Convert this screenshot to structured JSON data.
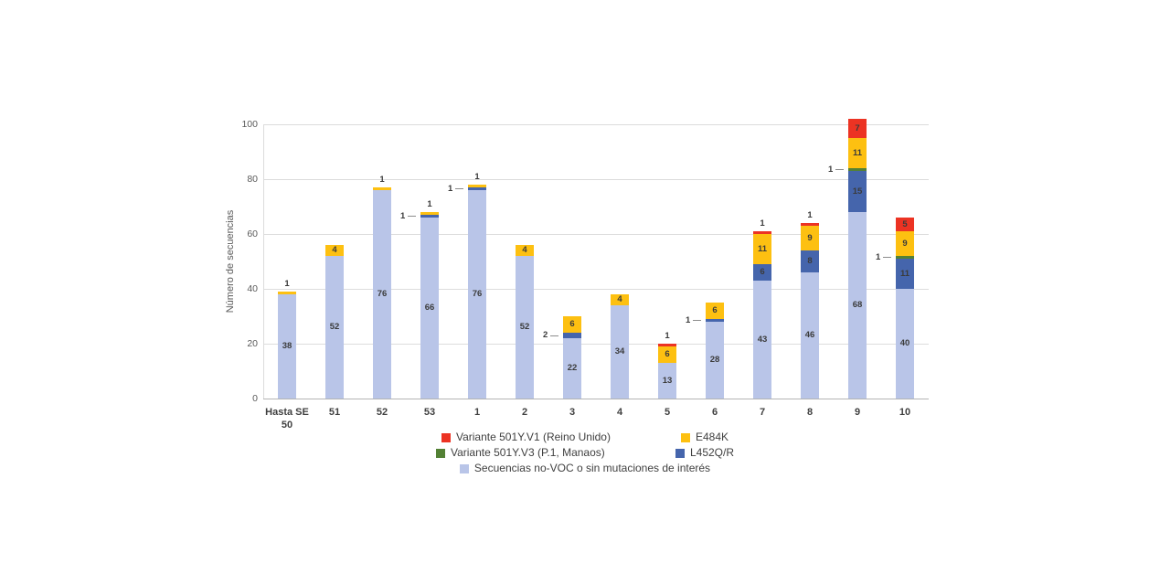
{
  "chart_data": {
    "type": "bar",
    "stacked": true,
    "title": "",
    "ylabel": "Número de secuencias",
    "xlabel": "",
    "ylim": [
      0,
      100
    ],
    "yticks": [
      0,
      20,
      40,
      60,
      80,
      100
    ],
    "grid": true,
    "legend_position": "bottom",
    "categories": [
      "Hasta SE 50",
      "51",
      "52",
      "53",
      "1",
      "2",
      "3",
      "4",
      "5",
      "6",
      "7",
      "8",
      "9",
      "10"
    ],
    "series": [
      {
        "name": "Secuencias no-VOC o sin mutaciones de interés",
        "color": "#b9c5e8",
        "values": [
          38,
          52,
          76,
          66,
          76,
          52,
          22,
          34,
          13,
          28,
          43,
          46,
          68,
          40
        ]
      },
      {
        "name": "L452Q/R",
        "color": "#4565ac",
        "values": [
          0,
          0,
          0,
          1,
          1,
          0,
          2,
          0,
          0,
          1,
          6,
          8,
          15,
          11
        ]
      },
      {
        "name": "Variante 501Y.V3 (P.1, Manaos)",
        "color": "#538135",
        "values": [
          0,
          0,
          0,
          0,
          0,
          0,
          0,
          0,
          0,
          0,
          0,
          0,
          1,
          1
        ]
      },
      {
        "name": "E484K",
        "color": "#fdc011",
        "values": [
          1,
          4,
          1,
          1,
          1,
          4,
          6,
          4,
          6,
          6,
          11,
          9,
          11,
          9
        ]
      },
      {
        "name": "Variante 501Y.V1 (Reino Unido)",
        "color": "#ec3323",
        "values": [
          0,
          0,
          0,
          0,
          0,
          0,
          0,
          0,
          1,
          0,
          1,
          1,
          7,
          5
        ]
      }
    ],
    "totals": [
      39,
      56,
      77,
      68,
      78,
      56,
      30,
      38,
      20,
      35,
      61,
      64,
      102,
      66
    ],
    "legend": {
      "rows": [
        [
          {
            "label": "Variante 501Y.V1 (Reino Unido)",
            "color": "#ec3323"
          },
          {
            "label": "E484K",
            "color": "#fdc011"
          }
        ],
        [
          {
            "label": "Variante 501Y.V3 (P.1, Manaos)",
            "color": "#538135"
          },
          {
            "label": "L452Q/R",
            "color": "#4565ac"
          }
        ],
        [
          {
            "label": "Secuencias no-VOC o sin mutaciones de interés",
            "color": "#b9c5e8"
          }
        ]
      ]
    },
    "colors": {
      "gridline": "#dcdcdc",
      "axis": "#b3b3b3",
      "tick_text": "#595959",
      "label_text": "#3b3b3b"
    }
  }
}
